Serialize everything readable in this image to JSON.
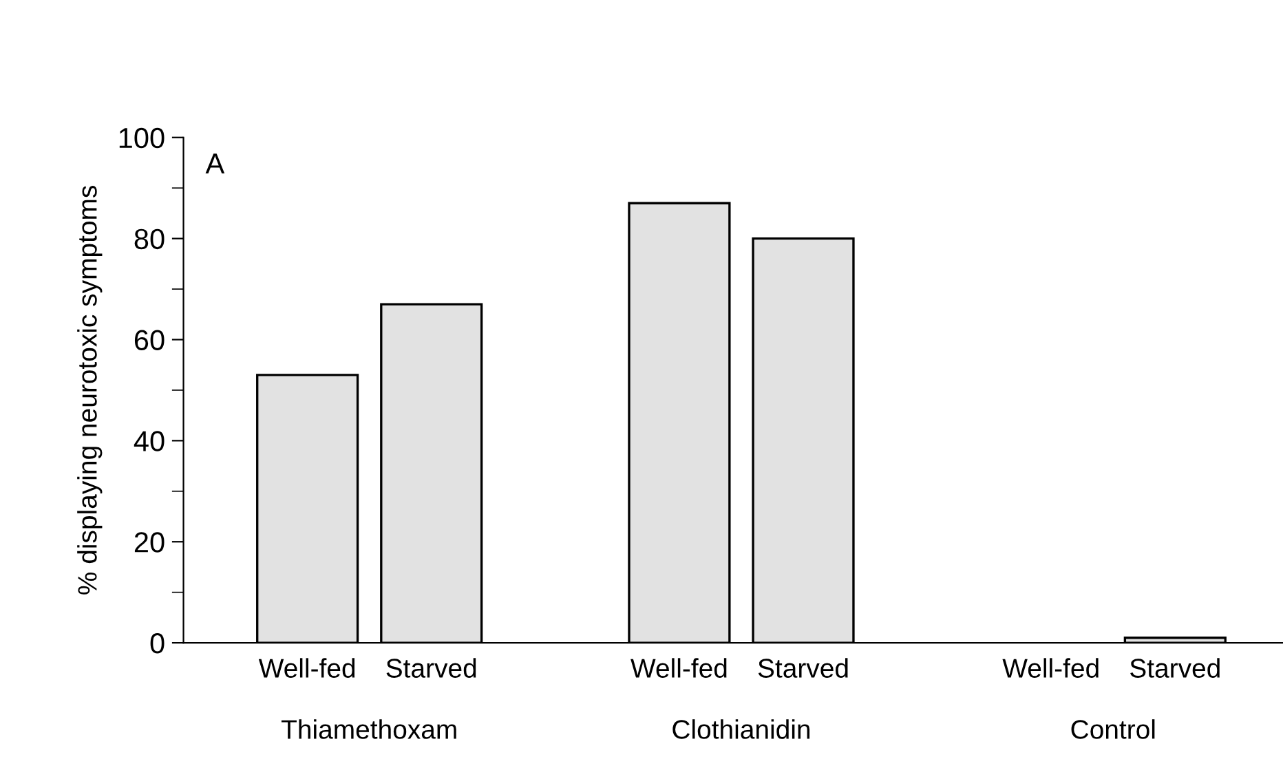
{
  "chart_data": {
    "type": "bar",
    "ylabel": "% displaying neurotoxic symptoms",
    "categories": [
      "Well-fed",
      "Starved",
      null,
      "Well-fed",
      "Starved",
      null,
      "Well-fed",
      "Starved"
    ],
    "values": [
      53,
      67,
      null,
      87,
      80,
      null,
      0,
      1
    ],
    "color": "#e2e2e2",
    "ylim": [
      0,
      100
    ],
    "yticks": [
      0,
      {
        "value": 10,
        "label": null
      },
      20,
      {
        "value": 30,
        "label": null
      },
      40,
      {
        "value": 50,
        "label": null
      },
      60,
      {
        "value": 70,
        "label": null
      },
      80,
      {
        "value": 90,
        "label": null
      },
      100
    ],
    "annotations": [
      "A",
      "Thiamethoxam",
      "Clothianidin",
      "Control"
    ],
    "grid": false,
    "legend": false
  }
}
